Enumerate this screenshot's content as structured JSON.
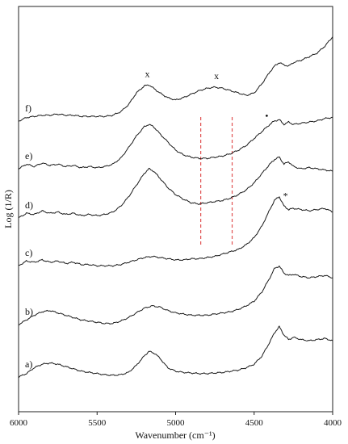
{
  "chart_data": {
    "type": "line",
    "xlabel": "Wavenumber (cm⁻¹)",
    "ylabel": "Log (1/R)",
    "xlim": [
      6000,
      4000
    ],
    "x_reversed": true,
    "xticks": [
      6000,
      5500,
      5000,
      4500,
      4000
    ],
    "xtick_labels": [
      "6000",
      "5500",
      "5000",
      "4500",
      "4000"
    ],
    "y_ticks_shown": false,
    "grid": false,
    "legend": "none",
    "trace_color": "#1a1a1a",
    "series": [
      {
        "name": "a)",
        "offset": 0,
        "scale": 1.0,
        "points": [
          [
            6000,
            0.02
          ],
          [
            5950,
            0.05
          ],
          [
            5900,
            0.1
          ],
          [
            5850,
            0.13
          ],
          [
            5800,
            0.14
          ],
          [
            5750,
            0.13
          ],
          [
            5700,
            0.11
          ],
          [
            5650,
            0.09
          ],
          [
            5600,
            0.07
          ],
          [
            5550,
            0.06
          ],
          [
            5500,
            0.05
          ],
          [
            5450,
            0.04
          ],
          [
            5400,
            0.035
          ],
          [
            5350,
            0.04
          ],
          [
            5300,
            0.06
          ],
          [
            5250,
            0.12
          ],
          [
            5200,
            0.2
          ],
          [
            5170,
            0.24
          ],
          [
            5130,
            0.22
          ],
          [
            5100,
            0.18
          ],
          [
            5050,
            0.1
          ],
          [
            5000,
            0.07
          ],
          [
            4950,
            0.06
          ],
          [
            4900,
            0.055
          ],
          [
            4850,
            0.05
          ],
          [
            4800,
            0.05
          ],
          [
            4750,
            0.055
          ],
          [
            4700,
            0.06
          ],
          [
            4650,
            0.07
          ],
          [
            4600,
            0.08
          ],
          [
            4550,
            0.1
          ],
          [
            4500,
            0.13
          ],
          [
            4450,
            0.2
          ],
          [
            4400,
            0.32
          ],
          [
            4370,
            0.4
          ],
          [
            4340,
            0.45
          ],
          [
            4310,
            0.38
          ],
          [
            4280,
            0.34
          ],
          [
            4250,
            0.36
          ],
          [
            4200,
            0.34
          ],
          [
            4150,
            0.33
          ],
          [
            4100,
            0.34
          ],
          [
            4050,
            0.35
          ],
          [
            4000,
            0.33
          ]
        ]
      },
      {
        "name": "b)",
        "offset": 1,
        "scale": 1.0,
        "points": [
          [
            6000,
            0.02
          ],
          [
            5950,
            0.06
          ],
          [
            5900,
            0.1
          ],
          [
            5850,
            0.13
          ],
          [
            5800,
            0.14
          ],
          [
            5750,
            0.12
          ],
          [
            5700,
            0.1
          ],
          [
            5650,
            0.08
          ],
          [
            5600,
            0.06
          ],
          [
            5550,
            0.05
          ],
          [
            5500,
            0.04
          ],
          [
            5450,
            0.03
          ],
          [
            5400,
            0.03
          ],
          [
            5350,
            0.05
          ],
          [
            5300,
            0.08
          ],
          [
            5250,
            0.12
          ],
          [
            5200,
            0.16
          ],
          [
            5150,
            0.18
          ],
          [
            5100,
            0.17
          ],
          [
            5050,
            0.14
          ],
          [
            5000,
            0.12
          ],
          [
            4950,
            0.11
          ],
          [
            4900,
            0.1
          ],
          [
            4850,
            0.1
          ],
          [
            4800,
            0.1
          ],
          [
            4750,
            0.11
          ],
          [
            4700,
            0.12
          ],
          [
            4650,
            0.13
          ],
          [
            4600,
            0.15
          ],
          [
            4550,
            0.18
          ],
          [
            4500,
            0.22
          ],
          [
            4450,
            0.3
          ],
          [
            4400,
            0.42
          ],
          [
            4370,
            0.5
          ],
          [
            4340,
            0.52
          ],
          [
            4310,
            0.46
          ],
          [
            4280,
            0.44
          ],
          [
            4250,
            0.45
          ],
          [
            4200,
            0.43
          ],
          [
            4150,
            0.42
          ],
          [
            4100,
            0.43
          ],
          [
            4050,
            0.44
          ],
          [
            4000,
            0.42
          ]
        ]
      },
      {
        "name": "c)",
        "offset": 2,
        "scale": 1.0,
        "points": [
          [
            6000,
            0.04
          ],
          [
            5950,
            0.08
          ],
          [
            5900,
            0.07
          ],
          [
            5850,
            0.09
          ],
          [
            5800,
            0.07
          ],
          [
            5750,
            0.08
          ],
          [
            5700,
            0.06
          ],
          [
            5650,
            0.07
          ],
          [
            5600,
            0.05
          ],
          [
            5550,
            0.05
          ],
          [
            5500,
            0.04
          ],
          [
            5450,
            0.04
          ],
          [
            5400,
            0.04
          ],
          [
            5350,
            0.05
          ],
          [
            5300,
            0.07
          ],
          [
            5250,
            0.09
          ],
          [
            5200,
            0.11
          ],
          [
            5150,
            0.12
          ],
          [
            5100,
            0.11
          ],
          [
            5050,
            0.1
          ],
          [
            5000,
            0.09
          ],
          [
            4950,
            0.09
          ],
          [
            4900,
            0.1
          ],
          [
            4850,
            0.1
          ],
          [
            4800,
            0.11
          ],
          [
            4750,
            0.12
          ],
          [
            4700,
            0.14
          ],
          [
            4650,
            0.16
          ],
          [
            4600,
            0.18
          ],
          [
            4550,
            0.22
          ],
          [
            4500,
            0.28
          ],
          [
            4450,
            0.38
          ],
          [
            4400,
            0.52
          ],
          [
            4370,
            0.6
          ],
          [
            4340,
            0.63
          ],
          [
            4310,
            0.55
          ],
          [
            4280,
            0.52
          ],
          [
            4250,
            0.53
          ],
          [
            4200,
            0.52
          ],
          [
            4150,
            0.51
          ],
          [
            4100,
            0.52
          ],
          [
            4050,
            0.53
          ],
          [
            4000,
            0.5
          ]
        ]
      },
      {
        "name": "d)",
        "offset": 3,
        "scale": 1.0,
        "points": [
          [
            6000,
            0.0
          ],
          [
            5950,
            0.04
          ],
          [
            5900,
            0.03
          ],
          [
            5850,
            0.06
          ],
          [
            5800,
            0.04
          ],
          [
            5750,
            0.05
          ],
          [
            5700,
            0.03
          ],
          [
            5650,
            0.04
          ],
          [
            5600,
            0.02
          ],
          [
            5550,
            0.03
          ],
          [
            5500,
            0.02
          ],
          [
            5450,
            0.03
          ],
          [
            5400,
            0.05
          ],
          [
            5350,
            0.1
          ],
          [
            5300,
            0.18
          ],
          [
            5250,
            0.28
          ],
          [
            5200,
            0.38
          ],
          [
            5170,
            0.42
          ],
          [
            5140,
            0.4
          ],
          [
            5100,
            0.34
          ],
          [
            5050,
            0.26
          ],
          [
            5000,
            0.2
          ],
          [
            4950,
            0.16
          ],
          [
            4900,
            0.13
          ],
          [
            4850,
            0.12
          ],
          [
            4800,
            0.13
          ],
          [
            4750,
            0.14
          ],
          [
            4700,
            0.15
          ],
          [
            4650,
            0.17
          ],
          [
            4600,
            0.2
          ],
          [
            4550,
            0.24
          ],
          [
            4500,
            0.3
          ],
          [
            4450,
            0.38
          ],
          [
            4400,
            0.46
          ],
          [
            4370,
            0.5
          ],
          [
            4340,
            0.52
          ],
          [
            4310,
            0.46
          ],
          [
            4280,
            0.48
          ],
          [
            4250,
            0.44
          ],
          [
            4200,
            0.42
          ],
          [
            4150,
            0.43
          ],
          [
            4100,
            0.42
          ],
          [
            4050,
            0.41
          ],
          [
            4000,
            0.4
          ]
        ]
      },
      {
        "name": "e)",
        "offset": 4,
        "scale": 1.0,
        "points": [
          [
            6000,
            0.04
          ],
          [
            5950,
            0.08
          ],
          [
            5900,
            0.06
          ],
          [
            5850,
            0.09
          ],
          [
            5800,
            0.07
          ],
          [
            5750,
            0.08
          ],
          [
            5700,
            0.06
          ],
          [
            5650,
            0.07
          ],
          [
            5600,
            0.05
          ],
          [
            5550,
            0.06
          ],
          [
            5500,
            0.05
          ],
          [
            5450,
            0.06
          ],
          [
            5400,
            0.08
          ],
          [
            5350,
            0.13
          ],
          [
            5300,
            0.22
          ],
          [
            5250,
            0.32
          ],
          [
            5200,
            0.4
          ],
          [
            5170,
            0.42
          ],
          [
            5140,
            0.4
          ],
          [
            5100,
            0.34
          ],
          [
            5050,
            0.27
          ],
          [
            5000,
            0.2
          ],
          [
            4950,
            0.16
          ],
          [
            4900,
            0.14
          ],
          [
            4850,
            0.13
          ],
          [
            4800,
            0.13
          ],
          [
            4750,
            0.14
          ],
          [
            4700,
            0.15
          ],
          [
            4650,
            0.17
          ],
          [
            4600,
            0.2
          ],
          [
            4550,
            0.24
          ],
          [
            4500,
            0.3
          ],
          [
            4450,
            0.36
          ],
          [
            4400,
            0.42
          ],
          [
            4370,
            0.45
          ],
          [
            4340,
            0.46
          ],
          [
            4310,
            0.42
          ],
          [
            4280,
            0.44
          ],
          [
            4250,
            0.42
          ],
          [
            4200,
            0.43
          ],
          [
            4150,
            0.44
          ],
          [
            4100,
            0.45
          ],
          [
            4050,
            0.47
          ],
          [
            4000,
            0.48
          ]
        ]
      },
      {
        "name": "f)",
        "offset": 5,
        "scale": 1.0,
        "points": [
          [
            6000,
            0.0
          ],
          [
            5950,
            0.03
          ],
          [
            5900,
            0.04
          ],
          [
            5850,
            0.05
          ],
          [
            5800,
            0.05
          ],
          [
            5750,
            0.06
          ],
          [
            5700,
            0.05
          ],
          [
            5650,
            0.05
          ],
          [
            5600,
            0.04
          ],
          [
            5550,
            0.04
          ],
          [
            5500,
            0.04
          ],
          [
            5450,
            0.04
          ],
          [
            5400,
            0.05
          ],
          [
            5350,
            0.08
          ],
          [
            5300,
            0.14
          ],
          [
            5250,
            0.24
          ],
          [
            5200,
            0.3
          ],
          [
            5170,
            0.31
          ],
          [
            5140,
            0.28
          ],
          [
            5100,
            0.24
          ],
          [
            5050,
            0.2
          ],
          [
            5000,
            0.18
          ],
          [
            4950,
            0.2
          ],
          [
            4900,
            0.23
          ],
          [
            4850,
            0.26
          ],
          [
            4800,
            0.28
          ],
          [
            4750,
            0.29
          ],
          [
            4700,
            0.28
          ],
          [
            4650,
            0.26
          ],
          [
            4600,
            0.24
          ],
          [
            4550,
            0.22
          ],
          [
            4500,
            0.24
          ],
          [
            4450,
            0.32
          ],
          [
            4400,
            0.42
          ],
          [
            4370,
            0.47
          ],
          [
            4340,
            0.5
          ],
          [
            4310,
            0.48
          ],
          [
            4280,
            0.47
          ],
          [
            4250,
            0.5
          ],
          [
            4200,
            0.52
          ],
          [
            4150,
            0.55
          ],
          [
            4100,
            0.58
          ],
          [
            4050,
            0.64
          ],
          [
            4000,
            0.72
          ]
        ]
      }
    ],
    "annotations": [
      {
        "text": "x",
        "x": 5180,
        "on_series": "f)"
      },
      {
        "text": "x",
        "x": 4740,
        "on_series": "f)"
      },
      {
        "text": "•",
        "x": 4420,
        "on_series": "e)"
      },
      {
        "text": "*",
        "x": 4300,
        "on_series": "c)"
      }
    ],
    "reference_lines": [
      {
        "x": 4840,
        "style": "dashed",
        "color": "#e05050"
      },
      {
        "x": 4640,
        "style": "dashed",
        "color": "#e05050"
      }
    ]
  }
}
